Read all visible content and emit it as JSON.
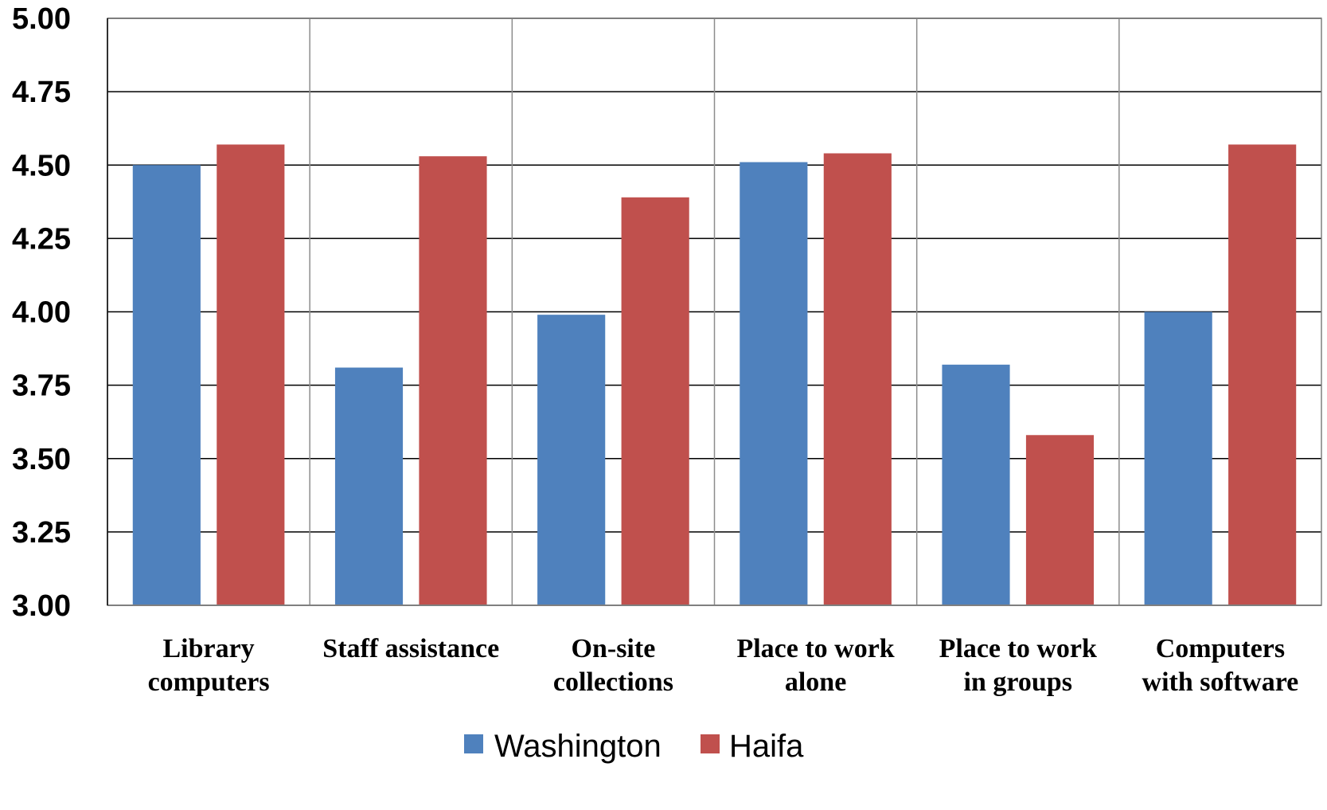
{
  "chart_data": {
    "type": "bar",
    "categories": [
      [
        "Library",
        "computers"
      ],
      [
        "Staff assistance"
      ],
      [
        "On-site",
        "collections"
      ],
      [
        "Place to work",
        "alone"
      ],
      [
        "Place to work",
        "in groups"
      ],
      [
        "Computers",
        "with software"
      ]
    ],
    "series": [
      {
        "name": "Washington",
        "color": "#4F81BD",
        "values": [
          4.5,
          3.81,
          3.99,
          4.51,
          3.82,
          4.0
        ]
      },
      {
        "name": "Haifa",
        "color": "#C0504D",
        "values": [
          4.57,
          4.53,
          4.39,
          4.54,
          3.58,
          4.57
        ]
      }
    ],
    "yticks": [
      "3.00",
      "3.25",
      "3.50",
      "3.75",
      "4.00",
      "4.25",
      "4.50",
      "4.75",
      "5.00"
    ],
    "ylim": [
      3.0,
      5.0
    ],
    "grid": true,
    "legend_position": "bottom"
  }
}
